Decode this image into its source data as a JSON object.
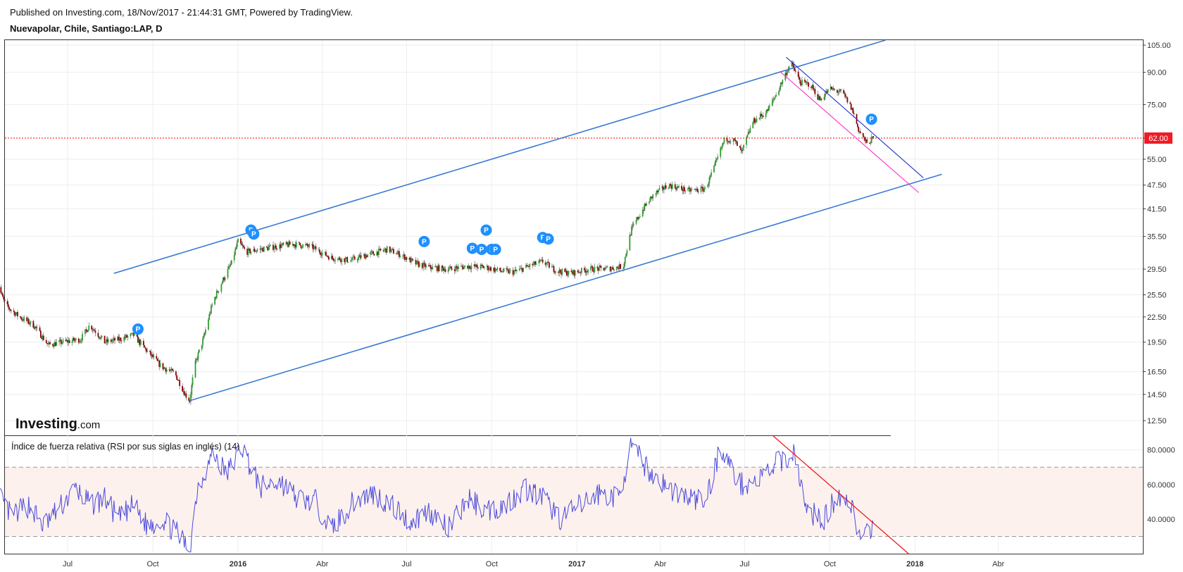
{
  "header": {
    "published": "Published on Investing.com, 18/Nov/2017 - 21:44:31 GMT, Powered by TradingView.",
    "symbol": "Nuevapolar, Chile, Santiago:LAP, D"
  },
  "logo": {
    "brand": "Investing",
    "suffix": ".com"
  },
  "colors": {
    "up": "#2e9e2e",
    "down": "#8b0000",
    "trendline": "#3a7bd5",
    "downtrend_dark": "#2233cc",
    "downtrend_pink": "#ff33cc",
    "last_price": "#ff0000",
    "rsi": "#4b4bdb",
    "rsi_band": "#fdf1ee",
    "badge": "#1e90ff"
  },
  "chart_data": [
    {
      "type": "candlestick",
      "title": "Nuevapolar, Chile, Santiago:LAP, D",
      "x_tick_labels": [
        "Jul",
        "Oct",
        "2016",
        "Abr",
        "Jul",
        "Oct",
        "2017",
        "Abr",
        "Jul",
        "Oct",
        "2018",
        "Abr"
      ],
      "bold_x_ticks": [
        "2016",
        "2017",
        "2018"
      ],
      "y_tick_labels": [
        "105.00",
        "90.00",
        "75.00",
        "62.00",
        "55.00",
        "47.50",
        "41.50",
        "35.50",
        "29.50",
        "25.50",
        "22.50",
        "19.50",
        "16.50",
        "14.50",
        "12.50"
      ],
      "y_scale": "log",
      "ylim": [
        11.5,
        108
      ],
      "last_price": 62.0,
      "last_price_label": "62.00",
      "price_path": [
        [
          "2015-04-15",
          27.5
        ],
        [
          "2015-04-25",
          24.0
        ],
        [
          "2015-05-10",
          22.5
        ],
        [
          "2015-05-25",
          21.5
        ],
        [
          "2015-06-10",
          19.2
        ],
        [
          "2015-06-25",
          19.5
        ],
        [
          "2015-07-15",
          19.8
        ],
        [
          "2015-07-25",
          21.5
        ],
        [
          "2015-08-10",
          19.5
        ],
        [
          "2015-08-25",
          19.8
        ],
        [
          "2015-09-10",
          20.3
        ],
        [
          "2015-09-25",
          18.5
        ],
        [
          "2015-10-10",
          17.0
        ],
        [
          "2015-10-25",
          16.3
        ],
        [
          "2015-11-05",
          14.5
        ],
        [
          "2015-11-10",
          14.0
        ],
        [
          "2015-11-15",
          17.0
        ],
        [
          "2015-11-25",
          20.0
        ],
        [
          "2015-12-05",
          24.5
        ],
        [
          "2015-12-15",
          27.5
        ],
        [
          "2015-12-25",
          30.5
        ],
        [
          "2016-01-01",
          34.5
        ],
        [
          "2016-01-10",
          32.5
        ],
        [
          "2016-01-25",
          33.0
        ],
        [
          "2016-02-10",
          33.5
        ],
        [
          "2016-03-01",
          34.0
        ],
        [
          "2016-03-20",
          33.5
        ],
        [
          "2016-04-10",
          31.5
        ],
        [
          "2016-05-01",
          31.0
        ],
        [
          "2016-05-20",
          32.0
        ],
        [
          "2016-06-10",
          33.0
        ],
        [
          "2016-06-25",
          32.0
        ],
        [
          "2016-07-10",
          30.5
        ],
        [
          "2016-07-25",
          29.8
        ],
        [
          "2016-08-15",
          29.5
        ],
        [
          "2016-09-05",
          30.0
        ],
        [
          "2016-09-25",
          29.8
        ],
        [
          "2016-10-10",
          29.2
        ],
        [
          "2016-10-25",
          29.0
        ],
        [
          "2016-11-10",
          30.0
        ],
        [
          "2016-11-25",
          30.8
        ],
        [
          "2016-12-10",
          29.2
        ],
        [
          "2016-12-25",
          28.8
        ],
        [
          "2017-01-15",
          29.5
        ],
        [
          "2017-02-05",
          29.6
        ],
        [
          "2017-02-20",
          30.0
        ],
        [
          "2017-03-01",
          37.0
        ],
        [
          "2017-03-15",
          42.0
        ],
        [
          "2017-03-25",
          45.0
        ],
        [
          "2017-04-10",
          47.5
        ],
        [
          "2017-05-01",
          46.0
        ],
        [
          "2017-05-20",
          46.5
        ],
        [
          "2017-05-30",
          53.0
        ],
        [
          "2017-06-10",
          62.0
        ],
        [
          "2017-06-20",
          61.0
        ],
        [
          "2017-06-28",
          57.0
        ],
        [
          "2017-07-10",
          68.0
        ],
        [
          "2017-07-25",
          72.0
        ],
        [
          "2017-08-05",
          80.0
        ],
        [
          "2017-08-20",
          95.0
        ],
        [
          "2017-08-30",
          85.0
        ],
        [
          "2017-09-10",
          84.0
        ],
        [
          "2017-09-20",
          77.0
        ],
        [
          "2017-10-01",
          82.0
        ],
        [
          "2017-10-15",
          80.0
        ],
        [
          "2017-10-25",
          73.0
        ],
        [
          "2017-11-01",
          65.0
        ],
        [
          "2017-11-10",
          60.0
        ],
        [
          "2017-11-17",
          62.0
        ]
      ],
      "trendlines": [
        {
          "name": "channel-upper",
          "points": [
            [
              "2015-08-20",
              28.8
            ],
            [
              "2017-11-30",
              108.0
            ]
          ]
        },
        {
          "name": "channel-lower",
          "points": [
            [
              "2015-11-10",
              14.0
            ],
            [
              "2018-01-30",
              50.5
            ]
          ]
        },
        {
          "name": "downtrend-dark",
          "points": [
            [
              "2017-08-15",
              98.0
            ],
            [
              "2018-01-10",
              49.5
            ]
          ]
        },
        {
          "name": "downtrend-pink",
          "points": [
            [
              "2017-08-08",
              90.5
            ],
            [
              "2018-01-05",
              45.5
            ]
          ]
        }
      ],
      "markers": [
        {
          "label": "P",
          "date": "2015-09-15",
          "price": 21.0
        },
        {
          "label": "P",
          "date": "2016-01-15",
          "price": 36.8
        },
        {
          "label": "P",
          "date": "2016-01-18",
          "price": 36.0
        },
        {
          "label": "P",
          "date": "2016-07-20",
          "price": 34.5
        },
        {
          "label": "P",
          "date": "2016-09-10",
          "price": 33.2
        },
        {
          "label": "P",
          "date": "2016-09-20",
          "price": 33.0
        },
        {
          "label": "P",
          "date": "2016-09-25",
          "price": 36.8
        },
        {
          "label": "P",
          "date": "2016-10-01",
          "price": 33.0
        },
        {
          "label": "P",
          "date": "2016-10-05",
          "price": 33.0
        },
        {
          "label": "P",
          "date": "2016-11-25",
          "price": 35.3
        },
        {
          "label": "P",
          "date": "2016-12-01",
          "price": 35.0
        },
        {
          "label": "P",
          "date": "2017-11-15",
          "price": 69.0
        }
      ]
    },
    {
      "type": "line",
      "title": "Índice de fuerza relativa (RSI por sus siglas en inglés) (14)",
      "y_tick_labels": [
        "80.0000",
        "60.0000",
        "40.0000"
      ],
      "ylim": [
        20,
        88
      ],
      "band": [
        30,
        70
      ],
      "series": [
        {
          "values": [
            [
              "2015-04-15",
              55
            ],
            [
              "2015-05-01",
              42
            ],
            [
              "2015-05-20",
              48
            ],
            [
              "2015-06-05",
              36
            ],
            [
              "2015-06-20",
              45
            ],
            [
              "2015-07-10",
              58
            ],
            [
              "2015-07-25",
              48
            ],
            [
              "2015-08-10",
              52
            ],
            [
              "2015-08-25",
              40
            ],
            [
              "2015-09-10",
              48
            ],
            [
              "2015-09-25",
              36
            ],
            [
              "2015-10-10",
              40
            ],
            [
              "2015-10-25",
              33
            ],
            [
              "2015-11-10",
              22
            ],
            [
              "2015-11-18",
              58
            ],
            [
              "2015-12-05",
              78
            ],
            [
              "2015-12-20",
              66
            ],
            [
              "2016-01-05",
              82
            ],
            [
              "2016-01-25",
              58
            ],
            [
              "2016-02-15",
              62
            ],
            [
              "2016-03-05",
              52
            ],
            [
              "2016-03-25",
              50
            ],
            [
              "2016-04-10",
              34
            ],
            [
              "2016-05-05",
              50
            ],
            [
              "2016-05-25",
              55
            ],
            [
              "2016-06-15",
              48
            ],
            [
              "2016-07-05",
              38
            ],
            [
              "2016-07-25",
              45
            ],
            [
              "2016-08-15",
              34
            ],
            [
              "2016-09-05",
              52
            ],
            [
              "2016-09-25",
              45
            ],
            [
              "2016-10-15",
              48
            ],
            [
              "2016-11-05",
              58
            ],
            [
              "2016-11-25",
              52
            ],
            [
              "2016-12-15",
              40
            ],
            [
              "2017-01-05",
              48
            ],
            [
              "2017-01-25",
              55
            ],
            [
              "2017-02-15",
              52
            ],
            [
              "2017-02-28",
              82
            ],
            [
              "2017-03-20",
              68
            ],
            [
              "2017-04-10",
              58
            ],
            [
              "2017-05-01",
              52
            ],
            [
              "2017-05-20",
              50
            ],
            [
              "2017-06-05",
              82
            ],
            [
              "2017-06-25",
              60
            ],
            [
              "2017-07-15",
              62
            ],
            [
              "2017-08-05",
              72
            ],
            [
              "2017-08-25",
              78
            ],
            [
              "2017-09-05",
              45
            ],
            [
              "2017-09-25",
              40
            ],
            [
              "2017-10-10",
              55
            ],
            [
              "2017-10-25",
              48
            ],
            [
              "2017-11-05",
              24
            ],
            [
              "2017-11-12",
              34
            ],
            [
              "2017-11-17",
              32
            ]
          ]
        }
      ],
      "trendlines": [
        {
          "name": "rsi-downtrend",
          "points": [
            [
              "2017-08-01",
              88
            ],
            [
              "2017-12-25",
              20
            ]
          ]
        }
      ]
    }
  ]
}
